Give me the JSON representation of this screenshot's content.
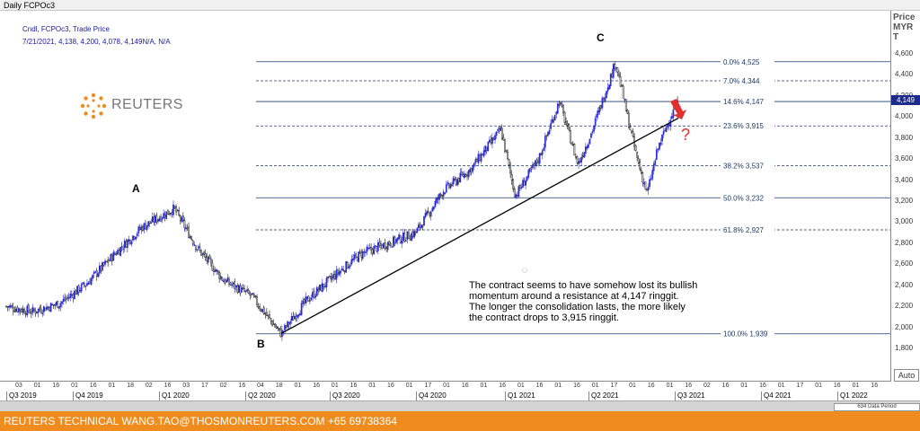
{
  "window": {
    "title": "Daily FCPOc3"
  },
  "legend": {
    "line1": "Cndl, FCPOc3, Trade Price",
    "line2": "7/21/2021, 4,138, 4,200, 4,078, 4,149N/A, N/A"
  },
  "logo": {
    "text": "REUTERS"
  },
  "axis": {
    "unit_lines": [
      "Price",
      "MYR",
      "T"
    ],
    "current_price": "4,149",
    "auto_label": "Auto"
  },
  "waves": {
    "a": "A",
    "b": "B",
    "c": "C"
  },
  "question_mark": "?",
  "annotation": [
    "The contract seems to have somehow lost its bullish",
    "momentum around a resistance at 4,147 ringgit.",
    "The longer the consolidation lasts, the more likely",
    "the contract drops to 3,915 ringgit."
  ],
  "scroll": {
    "label": "634 Data Period"
  },
  "footer": {
    "text": "REUTERS TECHNICAL  WANG.TAO@THOSMONREUTERS.COM  +65 69738364"
  },
  "colors": {
    "candle_up": "#2b2bd6",
    "candle_down": "#111111",
    "fib_line": "#1c3a6a",
    "trendline": "#000000",
    "arrow": "#e03030",
    "footer": "#f08c1e"
  },
  "chart_data": {
    "type": "candlestick",
    "title": "Daily FCPOc3",
    "ylabel": "Price MYR T",
    "ylim": [
      1650,
      4700
    ],
    "yticks": [
      1800,
      2000,
      2200,
      2400,
      2600,
      2800,
      3000,
      3200,
      3400,
      3600,
      3800,
      4000,
      4200,
      4400,
      4600
    ],
    "grid": false,
    "x_day_ticks": [
      "03",
      "01",
      "16",
      "01",
      "16",
      "01",
      "18",
      "02",
      "16",
      "03",
      "17",
      "02",
      "16",
      "04",
      "18",
      "01",
      "16",
      "01",
      "16",
      "01",
      "16",
      "01",
      "17",
      "01",
      "16",
      "01",
      "16",
      "01",
      "16",
      "01",
      "16",
      "01",
      "17",
      "01",
      "16",
      "01",
      "16",
      "02",
      "16",
      "01",
      "16",
      "01",
      "17",
      "01",
      "16",
      "01",
      "16"
    ],
    "x_quarters": [
      "Q3 2019",
      "Q4 2019",
      "Q1 2020",
      "Q2 2020",
      "Q3 2020",
      "Q4 2020",
      "Q1 2021",
      "Q2 2021",
      "Q3 2021",
      "Q4 2021",
      "Q1 2022"
    ],
    "price_path": [
      {
        "date": "2019-07-03",
        "close": 2200
      },
      {
        "date": "2019-08-01",
        "close": 2150
      },
      {
        "date": "2019-09-01",
        "close": 2230
      },
      {
        "date": "2019-10-01",
        "close": 2420
      },
      {
        "date": "2019-11-01",
        "close": 2700
      },
      {
        "date": "2019-12-01",
        "close": 2950
      },
      {
        "date": "2020-01-06",
        "close": 3130
      },
      {
        "date": "2020-02-01",
        "close": 2750
      },
      {
        "date": "2020-03-01",
        "close": 2450
      },
      {
        "date": "2020-04-01",
        "close": 2300
      },
      {
        "date": "2020-05-04",
        "close": 1940
      },
      {
        "date": "2020-06-01",
        "close": 2250
      },
      {
        "date": "2020-07-01",
        "close": 2480
      },
      {
        "date": "2020-08-01",
        "close": 2700
      },
      {
        "date": "2020-09-01",
        "close": 2800
      },
      {
        "date": "2020-10-01",
        "close": 2900
      },
      {
        "date": "2020-11-01",
        "close": 3300
      },
      {
        "date": "2020-12-01",
        "close": 3500
      },
      {
        "date": "2021-01-04",
        "close": 3880
      },
      {
        "date": "2021-01-20",
        "close": 3250
      },
      {
        "date": "2021-02-15",
        "close": 3600
      },
      {
        "date": "2021-03-10",
        "close": 4150
      },
      {
        "date": "2021-03-31",
        "close": 3550
      },
      {
        "date": "2021-04-15",
        "close": 3850
      },
      {
        "date": "2021-05-12",
        "close": 4525
      },
      {
        "date": "2021-05-25",
        "close": 4000
      },
      {
        "date": "2021-06-05",
        "close": 3600
      },
      {
        "date": "2021-06-16",
        "close": 3270
      },
      {
        "date": "2021-06-28",
        "close": 3700
      },
      {
        "date": "2021-07-12",
        "close": 4000
      },
      {
        "date": "2021-07-21",
        "close": 4149
      }
    ],
    "fibonacci_levels": [
      {
        "label": "0.0%",
        "value": "4,525",
        "price": 4525
      },
      {
        "label": "7.0%",
        "value": "4,344",
        "price": 4344
      },
      {
        "label": "14.6%",
        "value": "4,147",
        "price": 4147
      },
      {
        "label": "23.6%",
        "value": "3,915",
        "price": 3915
      },
      {
        "label": "38.2%",
        "value": "3,537",
        "price": 3537
      },
      {
        "label": "50.0%",
        "value": "3,232",
        "price": 3232
      },
      {
        "label": "61.8%",
        "value": "2,927",
        "price": 2927
      },
      {
        "label": "100.0%",
        "value": "1,939",
        "price": 1939
      }
    ],
    "trendline": [
      {
        "date": "2020-05-04",
        "price": 1940
      },
      {
        "date": "2021-07-21",
        "price": 3990
      }
    ]
  }
}
